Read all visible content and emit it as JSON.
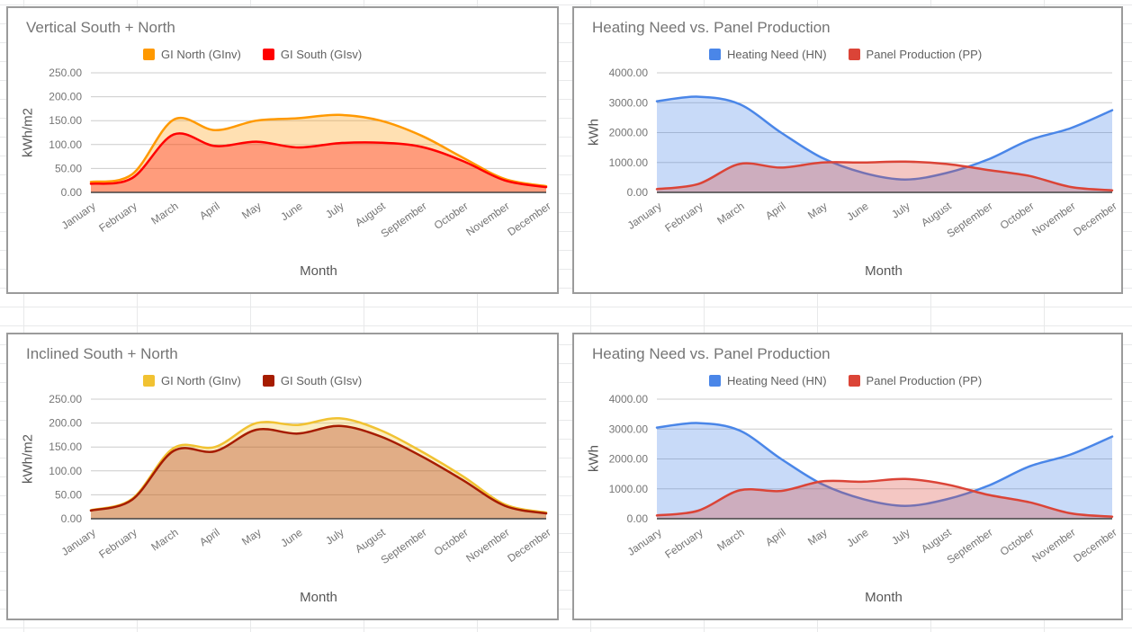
{
  "spreadsheet": {
    "gridline_color": "#e8e9ea",
    "chart_border_color": "#9b9b9b"
  },
  "chart_data": [
    {
      "type": "area",
      "title": "Vertical South + North",
      "xlabel": "Month",
      "ylabel": "kWh/m2",
      "ylim": [
        0,
        250
      ],
      "grid": true,
      "legend_position": "top",
      "ytick_labels": [
        "0.00",
        "50.00",
        "100.00",
        "150.00",
        "200.00",
        "250.00"
      ],
      "categories": [
        "January",
        "February",
        "March",
        "April",
        "May",
        "June",
        "July",
        "August",
        "September",
        "October",
        "November",
        "December"
      ],
      "series": [
        {
          "name": "GI North (GInv)",
          "color": "#FF9900",
          "fill_opacity": 0.3,
          "values": [
            22,
            38,
            152,
            130,
            150,
            155,
            162,
            150,
            118,
            72,
            28,
            13
          ]
        },
        {
          "name": "GI South (GIsv)",
          "color": "#FF0000",
          "fill_opacity": 0.3,
          "values": [
            18,
            30,
            121,
            97,
            106,
            94,
            103,
            104,
            95,
            65,
            25,
            11
          ]
        }
      ]
    },
    {
      "type": "area",
      "title": "Heating Need vs. Panel Production",
      "xlabel": "Month",
      "ylabel": "kWh",
      "ylim": [
        0,
        4000
      ],
      "grid": true,
      "legend_position": "top",
      "ytick_labels": [
        "0.00",
        "1000.00",
        "2000.00",
        "3000.00",
        "4000.00"
      ],
      "categories": [
        "January",
        "February",
        "March",
        "April",
        "May",
        "June",
        "July",
        "August",
        "September",
        "October",
        "November",
        "December"
      ],
      "series": [
        {
          "name": "Heating Need (HN)",
          "color": "#4A86E8",
          "fill_opacity": 0.3,
          "values": [
            3050,
            3200,
            2950,
            2000,
            1150,
            650,
            430,
            650,
            1100,
            1750,
            2150,
            2750
          ]
        },
        {
          "name": "Panel Production (PP)",
          "color": "#DB4437",
          "fill_opacity": 0.3,
          "values": [
            110,
            280,
            950,
            830,
            1000,
            1000,
            1030,
            950,
            750,
            550,
            180,
            70
          ]
        }
      ]
    },
    {
      "type": "area",
      "title": "Inclined South + North",
      "xlabel": "Month",
      "ylabel": "kWh/m2",
      "ylim": [
        0,
        250
      ],
      "grid": true,
      "legend_position": "top",
      "ytick_labels": [
        "0.00",
        "50.00",
        "100.00",
        "150.00",
        "200.00",
        "250.00"
      ],
      "categories": [
        "January",
        "February",
        "March",
        "April",
        "May",
        "June",
        "July",
        "August",
        "September",
        "October",
        "November",
        "December"
      ],
      "series": [
        {
          "name": "GI North (GInv)",
          "color": "#F1C232",
          "fill_opacity": 0.3,
          "values": [
            18,
            42,
            148,
            150,
            200,
            196,
            210,
            185,
            140,
            88,
            30,
            13
          ]
        },
        {
          "name": "GI South (GIsv)",
          "color": "#A61C00",
          "fill_opacity": 0.3,
          "values": [
            17,
            40,
            142,
            141,
            186,
            178,
            194,
            172,
            130,
            80,
            27,
            11
          ]
        }
      ]
    },
    {
      "type": "area",
      "title": "Heating Need vs. Panel Production",
      "xlabel": "Month",
      "ylabel": "kWh",
      "ylim": [
        0,
        4000
      ],
      "grid": true,
      "legend_position": "top",
      "ytick_labels": [
        "0.00",
        "1000.00",
        "2000.00",
        "3000.00",
        "4000.00"
      ],
      "categories": [
        "January",
        "February",
        "March",
        "April",
        "May",
        "June",
        "July",
        "August",
        "September",
        "October",
        "November",
        "December"
      ],
      "series": [
        {
          "name": "Heating Need (HN)",
          "color": "#4A86E8",
          "fill_opacity": 0.3,
          "values": [
            3050,
            3200,
            2950,
            2000,
            1150,
            650,
            430,
            650,
            1100,
            1750,
            2150,
            2750
          ]
        },
        {
          "name": "Panel Production (PP)",
          "color": "#DB4437",
          "fill_opacity": 0.3,
          "values": [
            110,
            270,
            950,
            930,
            1250,
            1240,
            1330,
            1150,
            800,
            550,
            180,
            70
          ]
        }
      ]
    }
  ]
}
